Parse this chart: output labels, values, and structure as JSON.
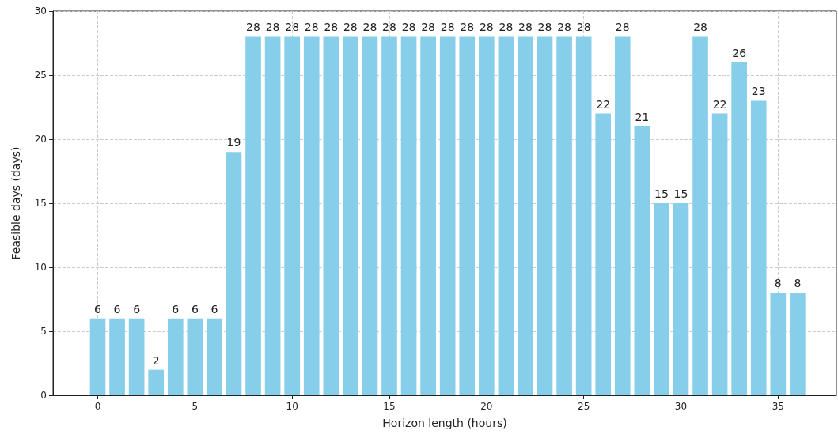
{
  "chart_data": {
    "type": "bar",
    "xlabel": "Horizon length (hours)",
    "ylabel": "Feasible days (days)",
    "x": [
      0,
      1,
      2,
      3,
      4,
      5,
      6,
      7,
      8,
      9,
      10,
      11,
      12,
      13,
      14,
      15,
      16,
      17,
      18,
      19,
      20,
      21,
      22,
      23,
      24,
      25,
      26,
      27,
      28,
      29,
      30,
      31,
      32,
      33,
      34,
      35,
      36
    ],
    "values": [
      6,
      6,
      6,
      2,
      6,
      6,
      6,
      19,
      28,
      28,
      28,
      28,
      28,
      28,
      28,
      28,
      28,
      28,
      28,
      28,
      28,
      28,
      28,
      28,
      28,
      28,
      22,
      28,
      21,
      15,
      15,
      28,
      22,
      26,
      23,
      8,
      8
    ],
    "color": "#87ceeb",
    "xlim": [
      -2.3,
      38.0
    ],
    "xticks": [
      0,
      5,
      10,
      15,
      20,
      25,
      30,
      35
    ],
    "ylim": [
      0,
      30
    ],
    "yticks": [
      0,
      5,
      10,
      15,
      20,
      25,
      30
    ],
    "grid": true,
    "line_style": "dashed",
    "data_labels": true
  }
}
